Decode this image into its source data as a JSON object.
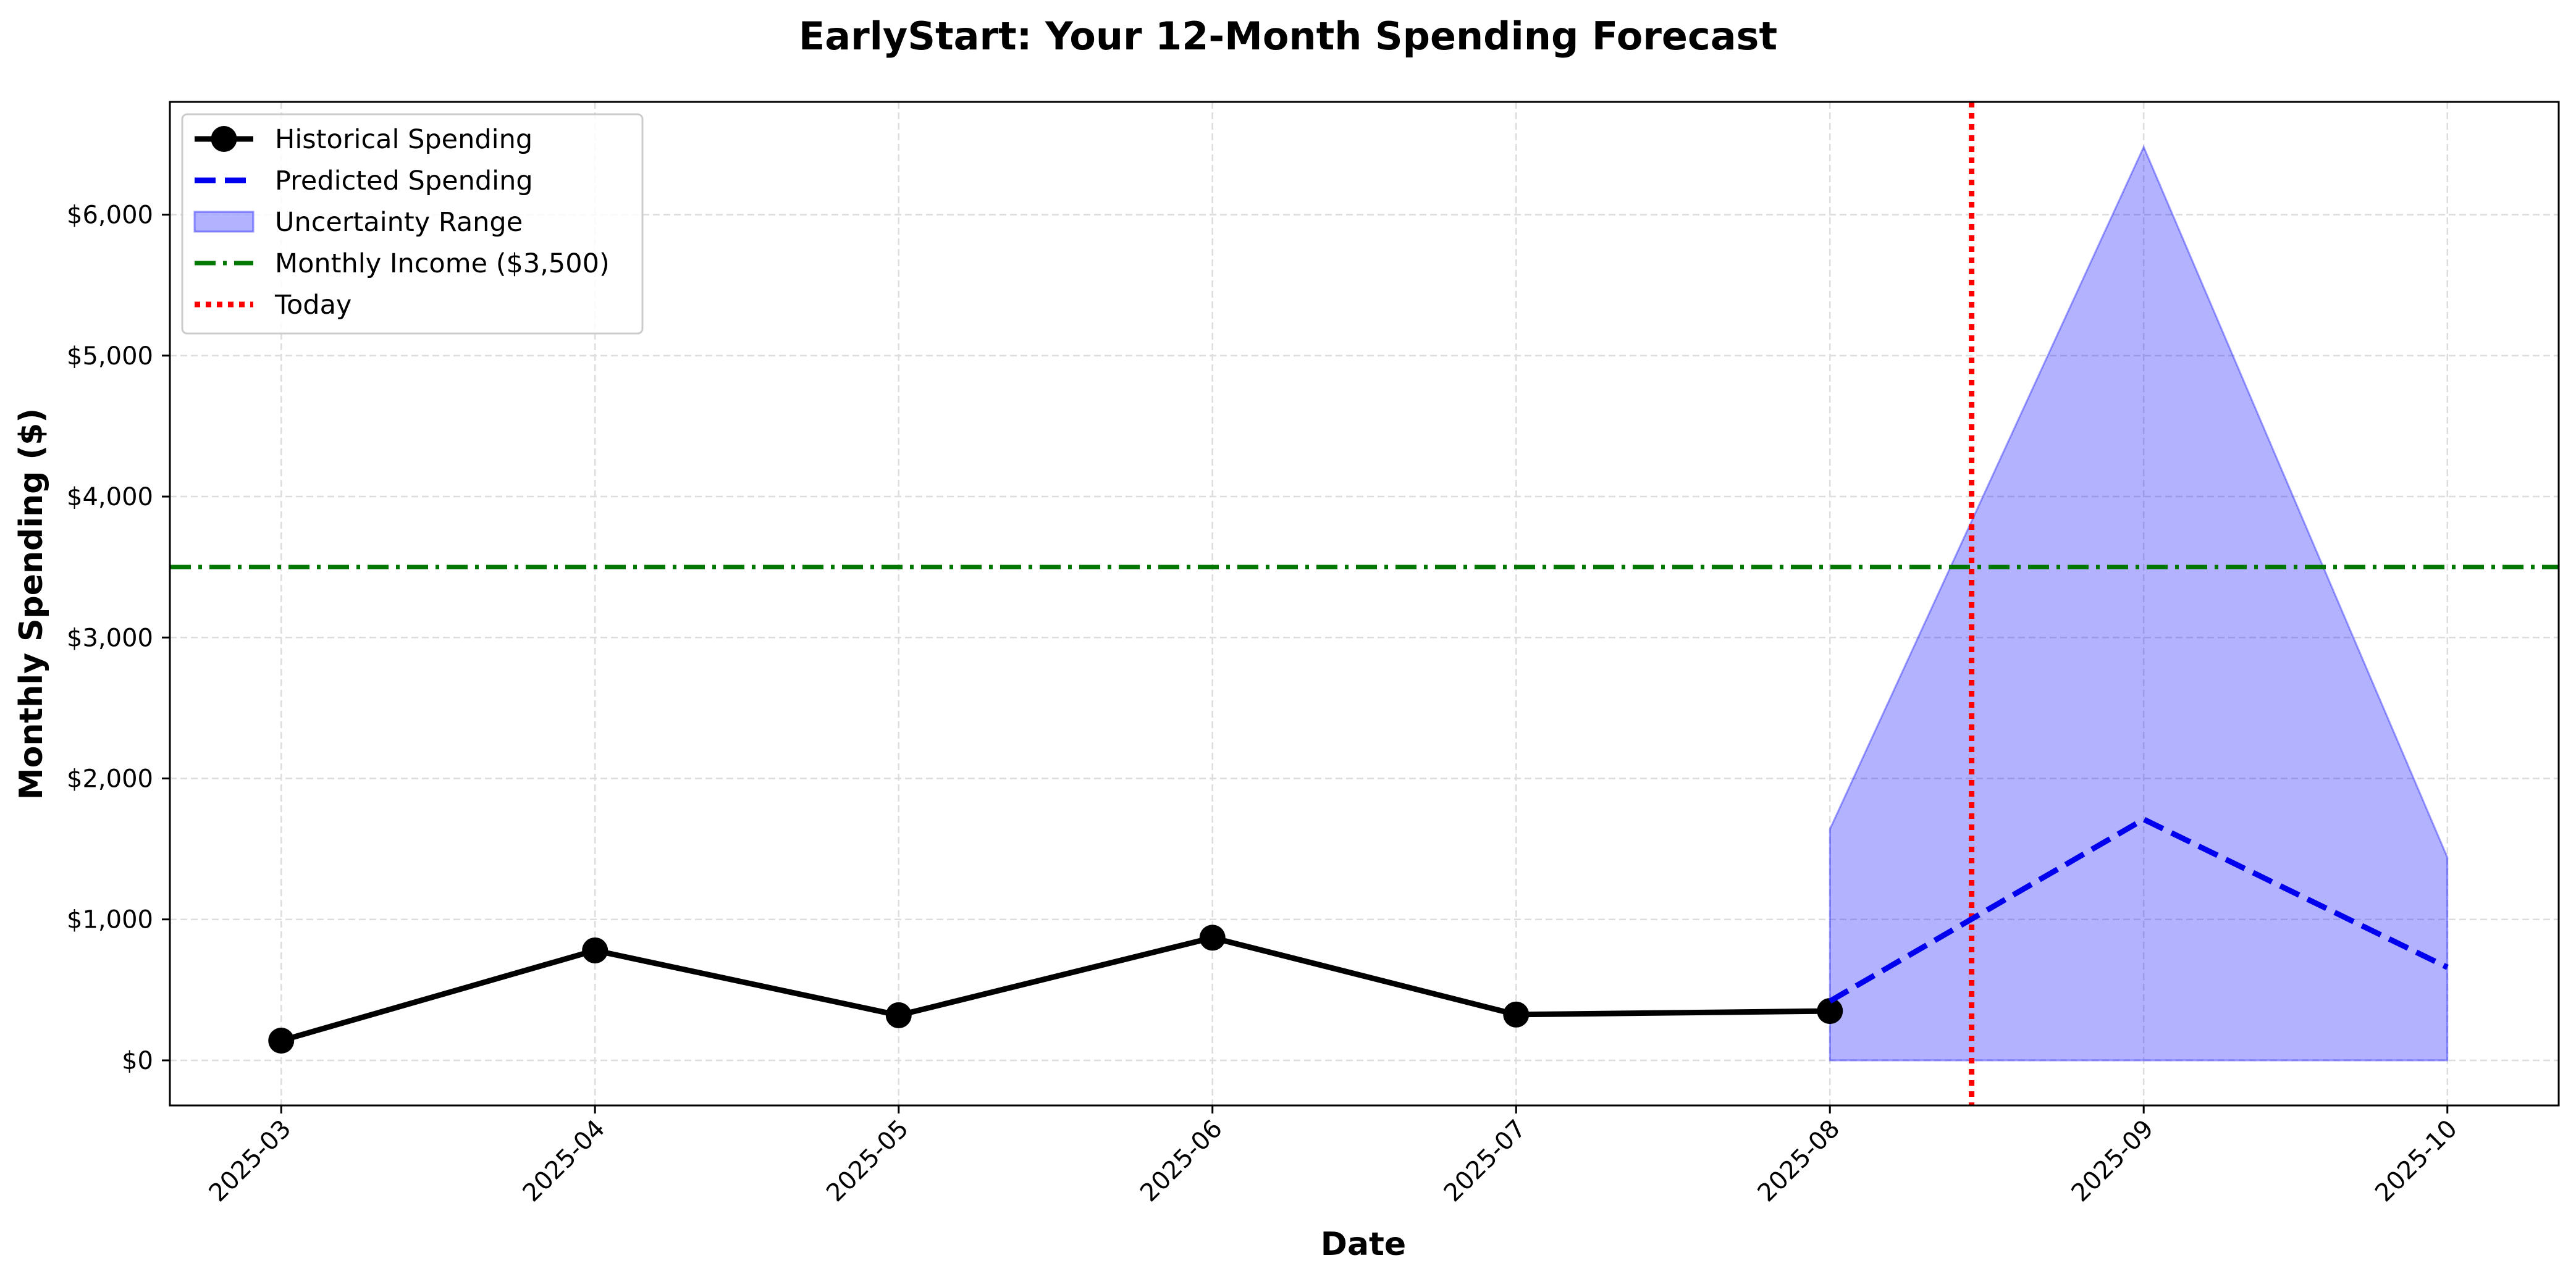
{
  "chart_data": {
    "type": "line",
    "title": "EarlyStart: Your 12-Month Spending Forecast",
    "xlabel": "Date",
    "ylabel": "Monthly Spending ($)",
    "x_ticks": [
      "2025-03",
      "2025-04",
      "2025-05",
      "2025-06",
      "2025-07",
      "2025-08",
      "2025-09",
      "2025-10"
    ],
    "x_domain_days": [
      -11,
      225
    ],
    "x_tick_days": [
      0,
      31,
      61,
      92,
      122,
      153,
      184,
      214
    ],
    "ylim": [
      -320,
      6800
    ],
    "y_ticks": [
      0,
      1000,
      2000,
      3000,
      4000,
      5000,
      6000
    ],
    "y_tick_labels": [
      "$0",
      "$1,000",
      "$2,000",
      "$3,000",
      "$4,000",
      "$5,000",
      "$6,000"
    ],
    "grid": true,
    "legend_position": "top-left",
    "series": [
      {
        "name": "Historical Spending",
        "style": "solid-markers",
        "color": "#000000",
        "x_days": [
          0,
          31,
          61,
          92,
          122,
          153
        ],
        "values": [
          140,
          780,
          320,
          870,
          325,
          350
        ]
      },
      {
        "name": "Predicted Spending",
        "style": "dashed",
        "color": "#0000ee",
        "x_days": [
          153,
          184,
          214
        ],
        "values": [
          420,
          1710,
          660
        ]
      }
    ],
    "band": {
      "name": "Uncertainty Range",
      "color": "#0000ff",
      "opacity": 0.3,
      "x_days": [
        153,
        184,
        214
      ],
      "upper": [
        1640,
        6480,
        1440
      ],
      "lower": [
        0,
        0,
        0
      ]
    },
    "hlines": [
      {
        "name": "Monthly Income ($3,500)",
        "value": 3500,
        "color": "#007700",
        "style": "dashdot"
      }
    ],
    "vlines": [
      {
        "name": "Today",
        "x_day": 167,
        "color": "#ff0000",
        "style": "dotted"
      }
    ],
    "legend": [
      {
        "label": "Historical Spending",
        "kind": "line-marker",
        "color": "#000000"
      },
      {
        "label": "Predicted Spending",
        "kind": "dashed",
        "color": "#0000ee"
      },
      {
        "label": "Uncertainty Range",
        "kind": "patch",
        "color": "#0000ff"
      },
      {
        "label": "Monthly Income ($3,500)",
        "kind": "dashdot",
        "color": "#007700"
      },
      {
        "label": "Today",
        "kind": "dotted",
        "color": "#ff0000"
      }
    ]
  }
}
